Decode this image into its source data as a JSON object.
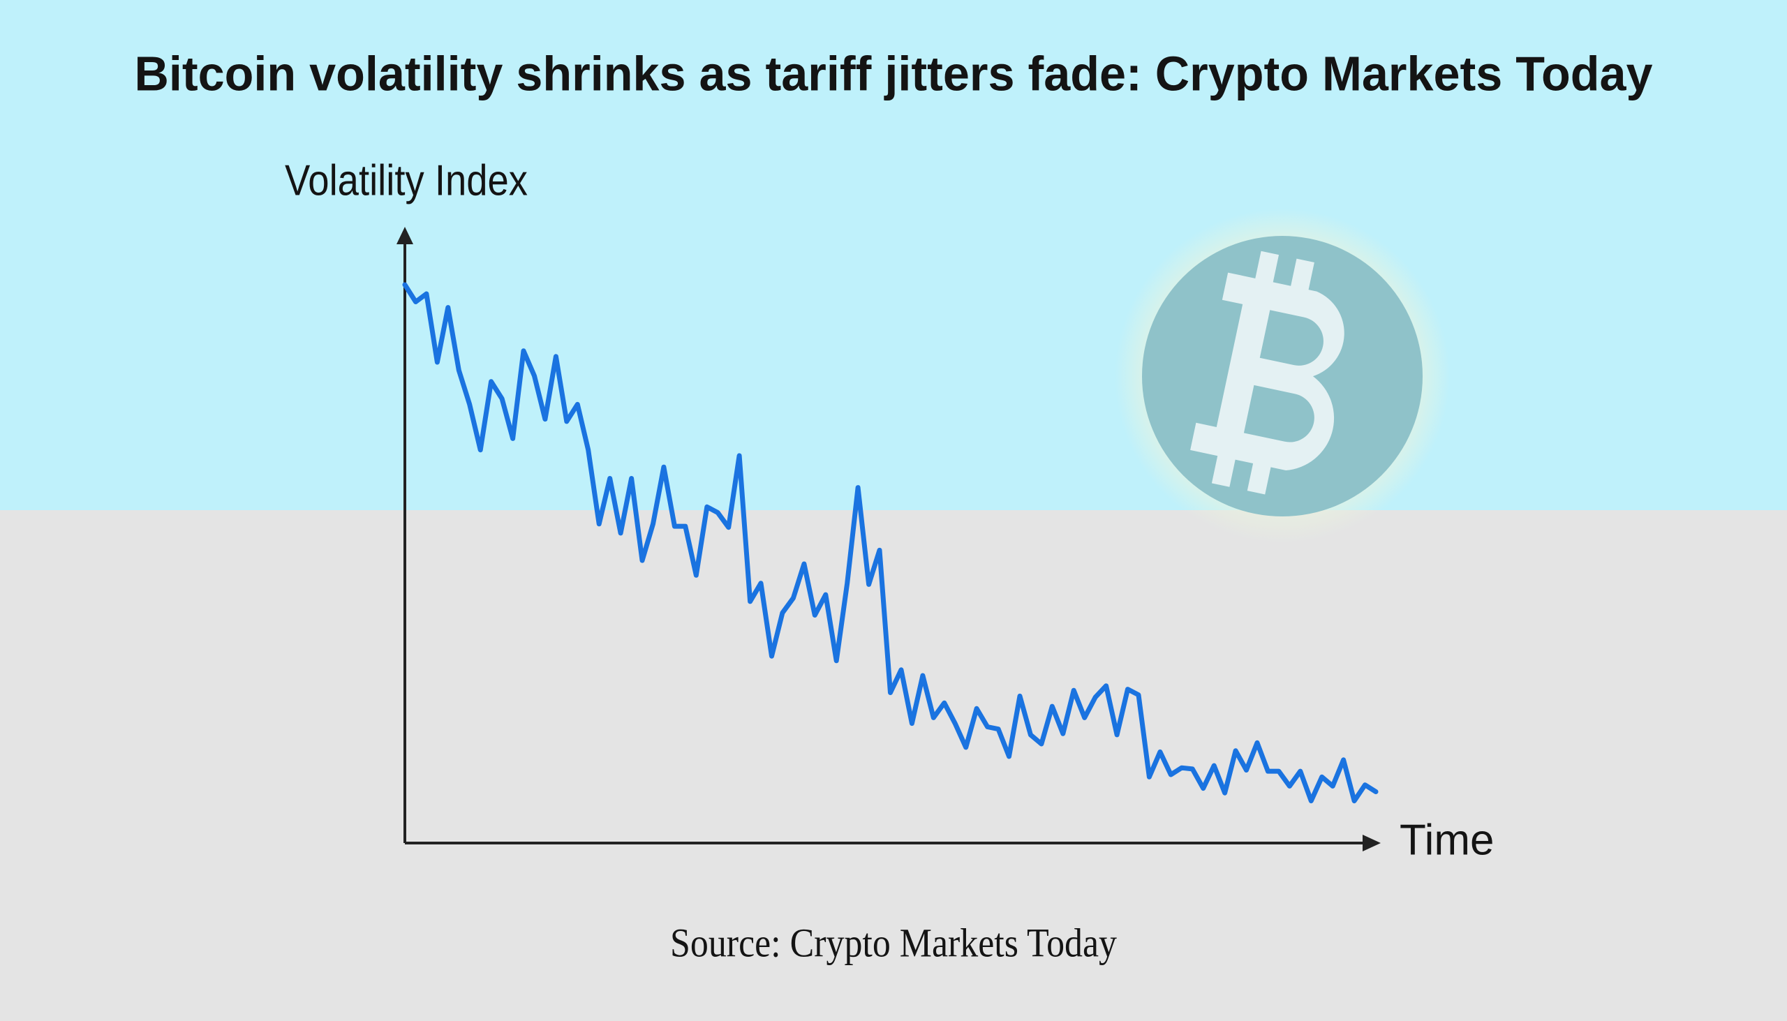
{
  "chart_data": {
    "type": "line",
    "title": "Bitcoin volatility shrinks as tariff jitters fade: Crypto Markets Today",
    "y_label": "Volatility Index",
    "x_label": "Time",
    "source": "Source: Crypto Markets Today",
    "ylim": [
      0,
      110
    ],
    "color": "#1a73e0",
    "values": [
      98,
      95,
      96.4,
      84.4,
      94,
      83,
      77,
      69,
      81,
      78,
      71,
      86.4,
      82,
      74.4,
      85.4,
      74,
      77,
      69,
      56,
      64,
      54.4,
      64,
      49.6,
      56,
      66,
      55.6,
      55.6,
      47,
      59,
      58,
      55.4,
      68,
      42.4,
      45.6,
      32.8,
      40.4,
      43,
      49,
      40,
      43.6,
      32,
      45.6,
      62.4,
      45.4,
      51.4,
      26.4,
      30.4,
      21,
      29.4,
      22,
      24.6,
      21,
      16.8,
      23.6,
      20.4,
      20,
      15.2,
      25.8,
      19,
      17.4,
      24,
      19.2,
      26.8,
      22,
      25.6,
      27.6,
      19,
      27,
      26,
      11.6,
      16,
      12,
      13.2,
      13,
      9.6,
      13.6,
      8.8,
      16.2,
      12.8,
      17.6,
      12.6,
      12.6,
      10,
      12.6,
      7.4,
      11.6,
      10,
      14.6,
      7.4,
      10.2,
      9
    ]
  }
}
